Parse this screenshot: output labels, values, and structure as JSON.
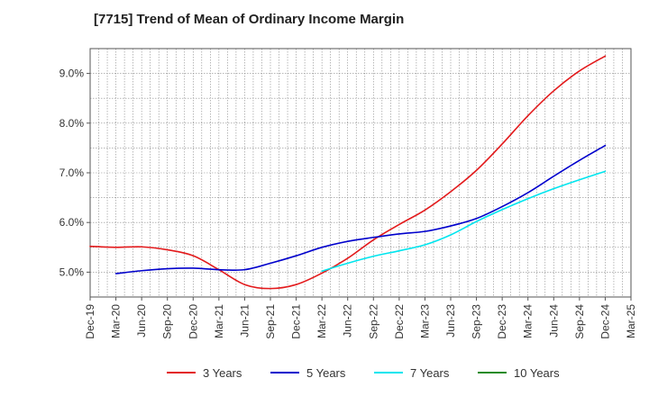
{
  "chart_data": {
    "type": "line",
    "title": "[7715]  Trend of Mean of Ordinary Income Margin",
    "xlabel": "",
    "ylabel": "",
    "categories": [
      "Dec-19",
      "Mar-20",
      "Jun-20",
      "Sep-20",
      "Dec-20",
      "Mar-21",
      "Jun-21",
      "Sep-21",
      "Dec-21",
      "Mar-22",
      "Jun-22",
      "Sep-22",
      "Dec-22",
      "Mar-23",
      "Jun-23",
      "Sep-23",
      "Dec-23",
      "Mar-24",
      "Jun-24",
      "Sep-24",
      "Dec-24",
      "Mar-25"
    ],
    "ylim": [
      4.5,
      9.5
    ],
    "yticks": [
      5.0,
      6.0,
      7.0,
      8.0,
      9.0
    ],
    "ytick_labels": [
      "5.0%",
      "6.0%",
      "7.0%",
      "8.0%",
      "9.0%"
    ],
    "grid": true,
    "legend_position": "bottom",
    "series": [
      {
        "name": "3 Years",
        "color": "#e31a1c",
        "values": [
          5.52,
          5.5,
          5.51,
          5.45,
          5.33,
          5.05,
          4.75,
          4.67,
          4.75,
          4.98,
          5.28,
          5.65,
          5.96,
          6.25,
          6.62,
          7.05,
          7.58,
          8.15,
          8.65,
          9.05,
          9.35,
          null
        ]
      },
      {
        "name": "5 Years",
        "color": "#0000cc",
        "values": [
          null,
          4.97,
          5.03,
          5.07,
          5.08,
          5.05,
          5.05,
          5.18,
          5.33,
          5.5,
          5.62,
          5.7,
          5.77,
          5.82,
          5.93,
          6.08,
          6.32,
          6.6,
          6.93,
          7.25,
          7.55,
          null
        ]
      },
      {
        "name": "7 Years",
        "color": "#00e5ee",
        "values": [
          null,
          null,
          null,
          null,
          null,
          null,
          null,
          null,
          null,
          5.02,
          5.18,
          5.32,
          5.43,
          5.55,
          5.75,
          6.02,
          6.26,
          6.48,
          6.68,
          6.86,
          7.03,
          null
        ]
      },
      {
        "name": "10 Years",
        "color": "#228b22",
        "values": [
          null,
          null,
          null,
          null,
          null,
          null,
          null,
          null,
          null,
          null,
          null,
          null,
          null,
          null,
          null,
          null,
          null,
          null,
          null,
          null,
          null,
          null
        ]
      }
    ]
  }
}
